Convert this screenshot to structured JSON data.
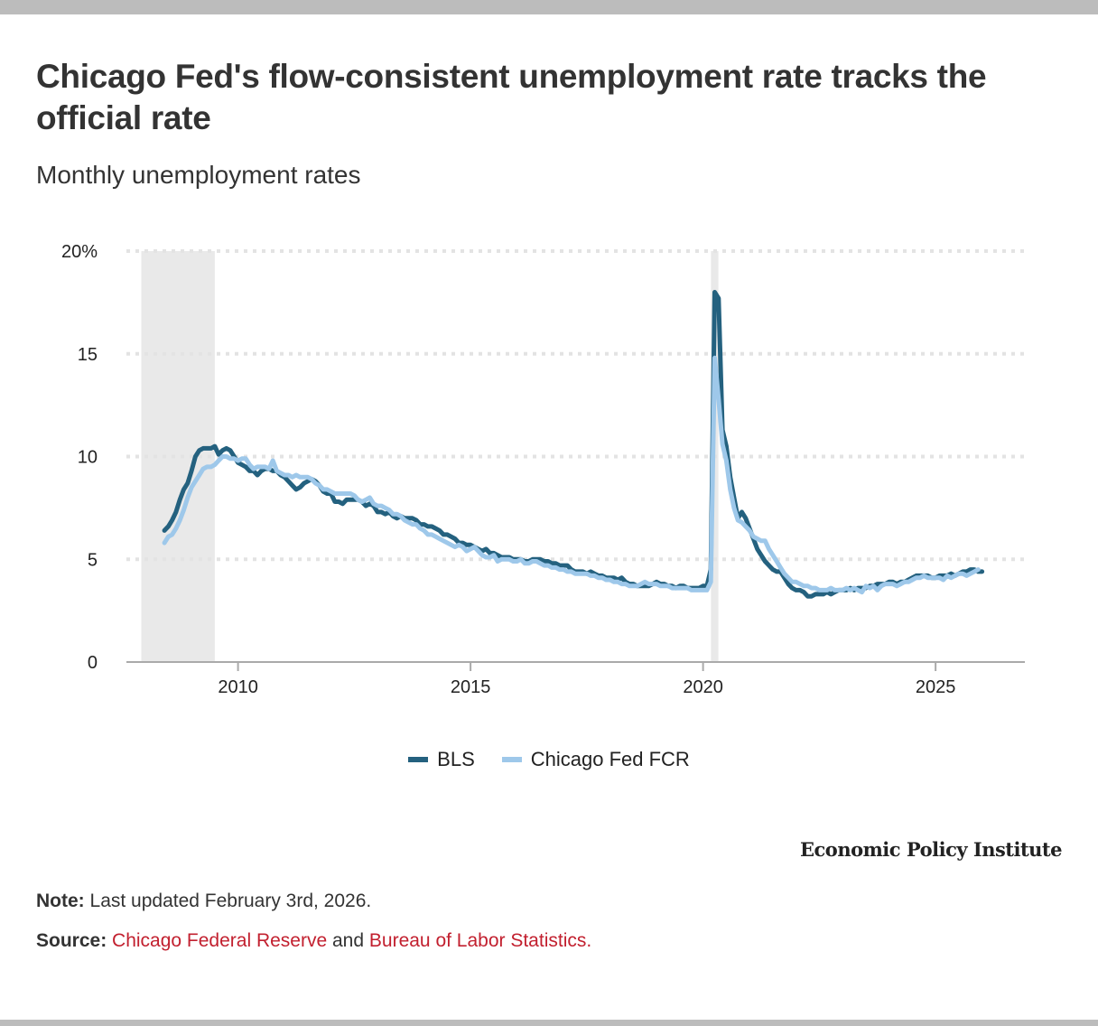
{
  "header": {
    "title": "Chicago Fed's flow-consistent unemployment rate tracks the official rate",
    "subtitle": "Monthly unemployment rates"
  },
  "legend": [
    {
      "label": "BLS",
      "color": "#24617f"
    },
    {
      "label": "Chicago Fed FCR",
      "color": "#9ec8ea"
    }
  ],
  "footer": {
    "brand": "Economic Policy Institute",
    "note_label": "Note:",
    "note_text": "Last updated February 3rd, 2026.",
    "source_label": "Source:",
    "source_link_1": "Chicago Federal Reserve",
    "source_and": "and",
    "source_link_2": "Bureau of Labor Statistics."
  },
  "chart_data": {
    "type": "line",
    "title": "Chicago Fed's flow-consistent unemployment rate tracks the official rate",
    "subtitle": "Monthly unemployment rates",
    "xlabel": "",
    "ylabel": "",
    "x_start": "2008-06",
    "x_frequency": "monthly",
    "xlim": [
      2007.6,
      2026.92
    ],
    "ylim": [
      0,
      20
    ],
    "yticks": [
      0,
      5,
      10,
      15,
      20
    ],
    "ytick_labels": [
      "0",
      "5",
      "10",
      "15",
      "20%"
    ],
    "xticks": [
      2010,
      2015,
      2020,
      2025
    ],
    "xtick_labels": [
      "2010",
      "2015",
      "2020",
      "2025"
    ],
    "grid": "horizontal-dotted",
    "legend_position": "bottom-center",
    "recessions": [
      {
        "start": 2007.92,
        "end": 2009.5
      },
      {
        "start": 2020.17,
        "end": 2020.33
      }
    ],
    "series": [
      {
        "name": "BLS",
        "color": "#24617f",
        "values": [
          6.4,
          6.6,
          6.9,
          7.3,
          7.9,
          8.4,
          8.7,
          9.3,
          10.0,
          10.3,
          10.4,
          10.4,
          10.4,
          10.5,
          10.1,
          10.3,
          10.4,
          10.3,
          10.0,
          9.7,
          9.6,
          9.5,
          9.3,
          9.3,
          9.1,
          9.3,
          9.4,
          9.4,
          9.3,
          9.3,
          9.1,
          9.0,
          8.8,
          8.6,
          8.4,
          8.5,
          8.7,
          8.8,
          8.9,
          8.8,
          8.6,
          8.3,
          8.2,
          8.2,
          7.8,
          7.8,
          7.7,
          7.9,
          7.9,
          7.9,
          7.9,
          7.8,
          7.6,
          7.7,
          7.6,
          7.3,
          7.3,
          7.2,
          7.3,
          7.1,
          7.0,
          7.1,
          7.0,
          7.0,
          7.0,
          6.9,
          6.7,
          6.7,
          6.6,
          6.6,
          6.5,
          6.4,
          6.2,
          6.2,
          6.1,
          6.0,
          5.8,
          5.8,
          5.7,
          5.7,
          5.6,
          5.5,
          5.4,
          5.5,
          5.3,
          5.3,
          5.2,
          5.1,
          5.1,
          5.1,
          5.0,
          5.0,
          5.0,
          4.9,
          4.9,
          5.0,
          5.0,
          5.0,
          4.9,
          4.9,
          4.8,
          4.8,
          4.7,
          4.7,
          4.7,
          4.5,
          4.4,
          4.4,
          4.4,
          4.3,
          4.4,
          4.3,
          4.2,
          4.2,
          4.1,
          4.1,
          4.1,
          4.0,
          4.1,
          3.9,
          3.8,
          3.8,
          3.7,
          3.7,
          3.7,
          3.7,
          3.8,
          3.9,
          3.8,
          3.8,
          3.7,
          3.7,
          3.6,
          3.7,
          3.7,
          3.6,
          3.6,
          3.6,
          3.6,
          3.7,
          3.7,
          4.5,
          18.0,
          17.7,
          11.3,
          10.5,
          9.0,
          8.0,
          7.0,
          7.3,
          7.0,
          6.5,
          6.0,
          5.5,
          5.2,
          4.9,
          4.7,
          4.5,
          4.4,
          4.4,
          4.1,
          3.8,
          3.6,
          3.5,
          3.5,
          3.4,
          3.2,
          3.2,
          3.3,
          3.3,
          3.3,
          3.4,
          3.3,
          3.4,
          3.5,
          3.5,
          3.5,
          3.6,
          3.5,
          3.6,
          3.6,
          3.6,
          3.7,
          3.7,
          3.8,
          3.8,
          3.8,
          3.9,
          3.9,
          3.8,
          3.9,
          3.9,
          4.0,
          4.1,
          4.2,
          4.2,
          4.2,
          4.2,
          4.1,
          4.1,
          4.2,
          4.2,
          4.2,
          4.3,
          4.2,
          4.3,
          4.4,
          4.4,
          4.5,
          4.5,
          4.4,
          4.4
        ]
      },
      {
        "name": "Chicago Fed FCR",
        "color": "#9ec8ea",
        "values": [
          5.8,
          6.1,
          6.2,
          6.5,
          6.9,
          7.4,
          8.0,
          8.5,
          8.8,
          9.1,
          9.4,
          9.5,
          9.5,
          9.6,
          9.8,
          10.0,
          10.0,
          9.9,
          9.9,
          9.8,
          9.9,
          9.9,
          9.6,
          9.4,
          9.5,
          9.5,
          9.5,
          9.4,
          9.8,
          9.3,
          9.2,
          9.1,
          9.1,
          9.0,
          9.1,
          9.0,
          9.0,
          9.0,
          8.9,
          8.7,
          8.6,
          8.4,
          8.4,
          8.3,
          8.2,
          8.2,
          8.2,
          8.2,
          8.2,
          8.1,
          7.9,
          7.8,
          7.9,
          8.0,
          7.7,
          7.6,
          7.6,
          7.5,
          7.4,
          7.2,
          7.2,
          7.1,
          6.9,
          6.8,
          6.7,
          6.7,
          6.5,
          6.4,
          6.2,
          6.2,
          6.1,
          6.0,
          5.9,
          5.8,
          5.7,
          5.6,
          5.7,
          5.6,
          5.4,
          5.5,
          5.6,
          5.4,
          5.2,
          5.1,
          5.1,
          5.2,
          4.9,
          5.0,
          5.0,
          5.0,
          4.9,
          4.9,
          5.0,
          4.8,
          4.8,
          4.9,
          4.9,
          4.8,
          4.7,
          4.7,
          4.6,
          4.6,
          4.5,
          4.5,
          4.4,
          4.4,
          4.3,
          4.3,
          4.3,
          4.3,
          4.2,
          4.2,
          4.1,
          4.1,
          4.0,
          4.0,
          3.9,
          3.9,
          3.8,
          3.8,
          3.7,
          3.7,
          3.7,
          3.8,
          3.9,
          3.8,
          3.8,
          3.8,
          3.7,
          3.7,
          3.7,
          3.6,
          3.6,
          3.6,
          3.6,
          3.6,
          3.5,
          3.5,
          3.5,
          3.5,
          3.5,
          3.9,
          14.8,
          12.8,
          10.6,
          9.8,
          8.4,
          7.5,
          6.9,
          6.8,
          6.6,
          6.4,
          6.1,
          6.0,
          5.9,
          5.9,
          5.5,
          5.2,
          4.9,
          4.6,
          4.3,
          4.1,
          3.9,
          3.9,
          3.8,
          3.7,
          3.7,
          3.6,
          3.6,
          3.5,
          3.5,
          3.5,
          3.6,
          3.5,
          3.5,
          3.5,
          3.6,
          3.5,
          3.6,
          3.5,
          3.4,
          3.7,
          3.6,
          3.7,
          3.5,
          3.7,
          3.8,
          3.8,
          3.8,
          3.7,
          3.8,
          3.9,
          3.9,
          4.0,
          4.1,
          4.1,
          4.2,
          4.1,
          4.1,
          4.1,
          4.1,
          4.0,
          4.2,
          4.1,
          4.2,
          4.3,
          4.3,
          4.2,
          4.3,
          4.4,
          4.5
        ]
      }
    ]
  }
}
